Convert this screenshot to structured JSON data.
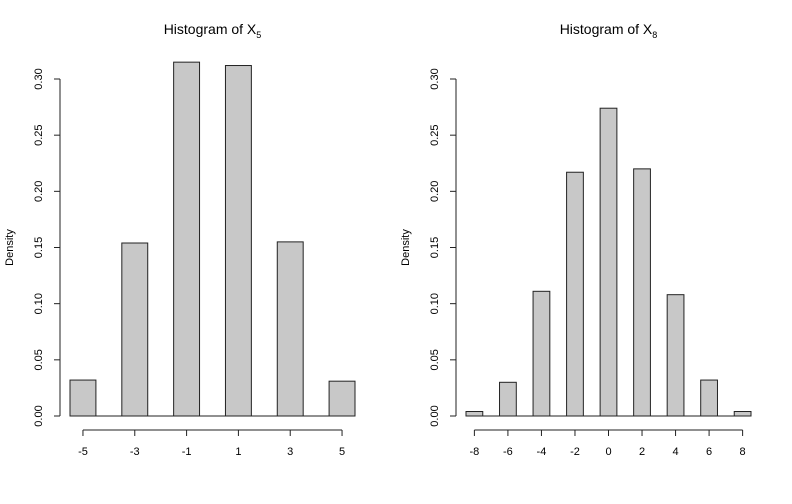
{
  "chart_data": [
    {
      "type": "bar",
      "title": "Histogram of X",
      "title_subscript": "5",
      "xlabel": "",
      "ylabel": "Density",
      "bar_color": "#c8c8c8",
      "bars": [
        {
          "x0": -5.5,
          "x1": -4.5,
          "density": 0.032
        },
        {
          "x0": -3.5,
          "x1": -2.5,
          "density": 0.154
        },
        {
          "x0": -1.5,
          "x1": -0.5,
          "density": 0.315
        },
        {
          "x0": 0.5,
          "x1": 1.5,
          "density": 0.312
        },
        {
          "x0": 2.5,
          "x1": 3.5,
          "density": 0.155
        },
        {
          "x0": 4.5,
          "x1": 5.5,
          "density": 0.031
        }
      ],
      "xlim": [
        -5.5,
        5.5
      ],
      "ylim": [
        0,
        0.3
      ],
      "xticks": [
        -5,
        -3,
        -1,
        1,
        3,
        5
      ],
      "xtick_labels": [
        "-5",
        "-3",
        "-1",
        "1",
        "3",
        "5"
      ],
      "yticks": [
        0,
        0.05,
        0.1,
        0.15,
        0.2,
        0.25,
        0.3
      ],
      "ytick_labels": [
        "0.00",
        "0.05",
        "0.10",
        "0.15",
        "0.20",
        "0.25",
        "0.30"
      ]
    },
    {
      "type": "bar",
      "title": "Histogram of X",
      "title_subscript": "8",
      "xlabel": "",
      "ylabel": "Density",
      "bar_color": "#c8c8c8",
      "bars": [
        {
          "x0": -8.5,
          "x1": -7.5,
          "density": 0.004
        },
        {
          "x0": -6.5,
          "x1": -5.5,
          "density": 0.03
        },
        {
          "x0": -4.5,
          "x1": -3.5,
          "density": 0.111
        },
        {
          "x0": -2.5,
          "x1": -1.5,
          "density": 0.217
        },
        {
          "x0": -0.5,
          "x1": 0.5,
          "density": 0.274
        },
        {
          "x0": 1.5,
          "x1": 2.5,
          "density": 0.22
        },
        {
          "x0": 3.5,
          "x1": 4.5,
          "density": 0.108
        },
        {
          "x0": 5.5,
          "x1": 6.5,
          "density": 0.032
        },
        {
          "x0": 7.5,
          "x1": 8.5,
          "density": 0.004
        }
      ],
      "xlim": [
        -8.5,
        8.5
      ],
      "ylim": [
        0,
        0.3
      ],
      "xticks": [
        -8,
        -6,
        -4,
        -2,
        0,
        2,
        4,
        6,
        8
      ],
      "xtick_labels": [
        "-8",
        "-6",
        "-4",
        "-2",
        "0",
        "2",
        "4",
        "6",
        "8"
      ],
      "yticks": [
        0,
        0.05,
        0.1,
        0.15,
        0.2,
        0.25,
        0.3
      ],
      "ytick_labels": [
        "0.00",
        "0.05",
        "0.10",
        "0.15",
        "0.20",
        "0.25",
        "0.30"
      ]
    }
  ]
}
